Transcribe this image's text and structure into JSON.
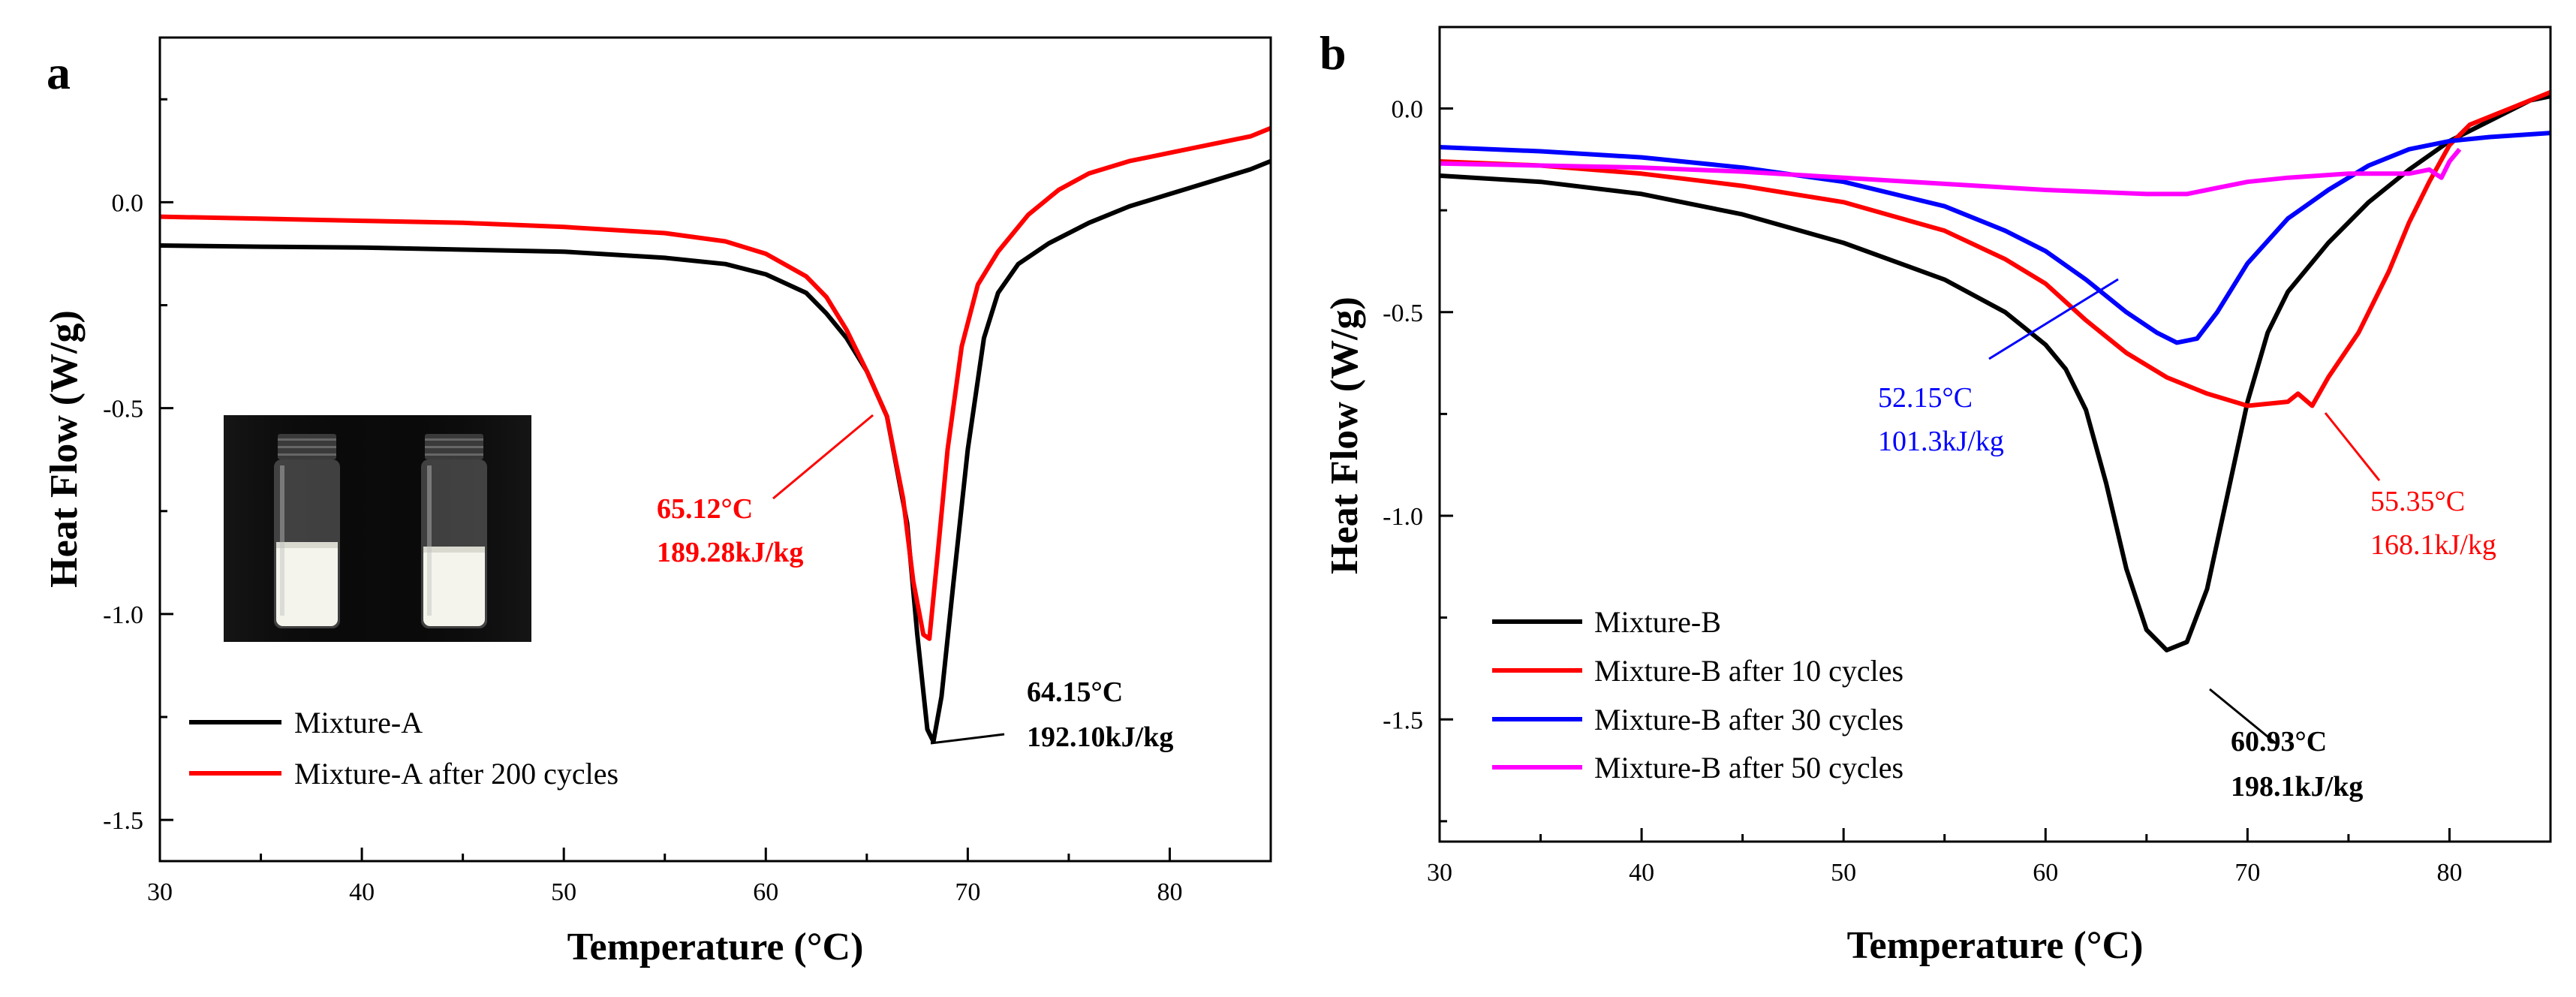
{
  "chart_data": [
    {
      "panel": "a",
      "type": "line",
      "xlabel": "Temperature (°C)",
      "ylabel": "Heat Flow (W/g)",
      "xlim": [
        30,
        85
      ],
      "ylim": [
        -1.6,
        0.4
      ],
      "xticks": [
        "30",
        "40",
        "50",
        "60",
        "70",
        "80"
      ],
      "yticks": [
        "0.0",
        "-0.5",
        "-1.0",
        "-1.5"
      ],
      "legend": "bottom-left",
      "series": [
        {
          "name": "Mixture-A",
          "color": "#000000",
          "points": [
            [
              30,
              -0.105
            ],
            [
              35,
              -0.108
            ],
            [
              40,
              -0.11
            ],
            [
              45,
              -0.115
            ],
            [
              50,
              -0.12
            ],
            [
              55,
              -0.135
            ],
            [
              58,
              -0.15
            ],
            [
              60,
              -0.175
            ],
            [
              62,
              -0.22
            ],
            [
              63,
              -0.27
            ],
            [
              64,
              -0.33
            ],
            [
              65,
              -0.41
            ],
            [
              66,
              -0.52
            ],
            [
              67,
              -0.78
            ],
            [
              67.5,
              -1.05
            ],
            [
              68,
              -1.28
            ],
            [
              68.3,
              -1.31
            ],
            [
              68.7,
              -1.2
            ],
            [
              69.3,
              -0.92
            ],
            [
              70,
              -0.6
            ],
            [
              70.8,
              -0.33
            ],
            [
              71.5,
              -0.22
            ],
            [
              72.5,
              -0.15
            ],
            [
              74,
              -0.1
            ],
            [
              76,
              -0.05
            ],
            [
              78,
              -0.01
            ],
            [
              80,
              0.02
            ],
            [
              82,
              0.05
            ],
            [
              84,
              0.08
            ],
            [
              85,
              0.1
            ]
          ]
        },
        {
          "name": "Mixture-A after 200 cycles",
          "color": "#ff0000",
          "points": [
            [
              30,
              -0.035
            ],
            [
              35,
              -0.04
            ],
            [
              40,
              -0.045
            ],
            [
              45,
              -0.05
            ],
            [
              50,
              -0.06
            ],
            [
              55,
              -0.075
            ],
            [
              58,
              -0.095
            ],
            [
              60,
              -0.125
            ],
            [
              62,
              -0.18
            ],
            [
              63,
              -0.23
            ],
            [
              64,
              -0.31
            ],
            [
              65,
              -0.41
            ],
            [
              66,
              -0.52
            ],
            [
              66.8,
              -0.72
            ],
            [
              67.3,
              -0.92
            ],
            [
              67.8,
              -1.05
            ],
            [
              68.1,
              -1.06
            ],
            [
              68.5,
              -0.86
            ],
            [
              69,
              -0.6
            ],
            [
              69.7,
              -0.35
            ],
            [
              70.5,
              -0.2
            ],
            [
              71.5,
              -0.12
            ],
            [
              73,
              -0.03
            ],
            [
              74.5,
              0.03
            ],
            [
              76,
              0.07
            ],
            [
              78,
              0.1
            ],
            [
              80,
              0.12
            ],
            [
              82,
              0.14
            ],
            [
              84,
              0.16
            ],
            [
              85,
              0.18
            ]
          ]
        }
      ],
      "annotations": [
        {
          "name": "red-peak",
          "color": "#ff0000",
          "lines": [
            "65.12°C",
            "189.28kJ/kg"
          ]
        },
        {
          "name": "black-peak",
          "color": "#000000",
          "lines": [
            "64.15°C",
            "192.10kJ/kg"
          ]
        }
      ]
    },
    {
      "panel": "b",
      "type": "line",
      "xlabel": "Temperature (°C)",
      "ylabel": "Heat Flow (W/g)",
      "xlim": [
        30,
        85
      ],
      "ylim": [
        -1.8,
        0.2
      ],
      "xticks": [
        "30",
        "40",
        "50",
        "60",
        "70",
        "80"
      ],
      "yticks": [
        "0.0",
        "-0.5",
        "-1.0",
        "-1.5"
      ],
      "legend": "bottom-left",
      "series": [
        {
          "name": "Mixture-B",
          "color": "#000000",
          "points": [
            [
              30,
              -0.165
            ],
            [
              35,
              -0.18
            ],
            [
              40,
              -0.21
            ],
            [
              45,
              -0.26
            ],
            [
              50,
              -0.33
            ],
            [
              55,
              -0.42
            ],
            [
              58,
              -0.5
            ],
            [
              60,
              -0.58
            ],
            [
              61,
              -0.64
            ],
            [
              62,
              -0.74
            ],
            [
              63,
              -0.92
            ],
            [
              64,
              -1.13
            ],
            [
              65,
              -1.28
            ],
            [
              66,
              -1.33
            ],
            [
              67,
              -1.31
            ],
            [
              68,
              -1.18
            ],
            [
              69,
              -0.95
            ],
            [
              70,
              -0.72
            ],
            [
              71,
              -0.55
            ],
            [
              72,
              -0.45
            ],
            [
              74,
              -0.33
            ],
            [
              76,
              -0.23
            ],
            [
              78,
              -0.15
            ],
            [
              80,
              -0.08
            ],
            [
              82,
              -0.03
            ],
            [
              84,
              0.02
            ],
            [
              85,
              0.03
            ]
          ]
        },
        {
          "name": "Mixture-B after 10 cycles",
          "color": "#ff0000",
          "points": [
            [
              30,
              -0.13
            ],
            [
              35,
              -0.14
            ],
            [
              40,
              -0.16
            ],
            [
              45,
              -0.19
            ],
            [
              50,
              -0.23
            ],
            [
              55,
              -0.3
            ],
            [
              58,
              -0.37
            ],
            [
              60,
              -0.43
            ],
            [
              62,
              -0.52
            ],
            [
              64,
              -0.6
            ],
            [
              66,
              -0.66
            ],
            [
              68,
              -0.7
            ],
            [
              70,
              -0.73
            ],
            [
              72,
              -0.72
            ],
            [
              72.5,
              -0.7
            ],
            [
              73.2,
              -0.73
            ],
            [
              74,
              -0.66
            ],
            [
              75.5,
              -0.55
            ],
            [
              77,
              -0.4
            ],
            [
              78,
              -0.28
            ],
            [
              79,
              -0.18
            ],
            [
              80,
              -0.09
            ],
            [
              81,
              -0.04
            ],
            [
              83,
              0.0
            ],
            [
              85,
              0.04
            ]
          ]
        },
        {
          "name": "Mixture-B after 30 cycles",
          "color": "#0000ff",
          "points": [
            [
              30,
              -0.095
            ],
            [
              35,
              -0.105
            ],
            [
              40,
              -0.12
            ],
            [
              45,
              -0.145
            ],
            [
              50,
              -0.18
            ],
            [
              55,
              -0.24
            ],
            [
              58,
              -0.3
            ],
            [
              60,
              -0.35
            ],
            [
              62,
              -0.42
            ],
            [
              64,
              -0.5
            ],
            [
              65.5,
              -0.55
            ],
            [
              66.5,
              -0.575
            ],
            [
              67.5,
              -0.565
            ],
            [
              68.5,
              -0.5
            ],
            [
              70,
              -0.38
            ],
            [
              72,
              -0.27
            ],
            [
              74,
              -0.2
            ],
            [
              76,
              -0.14
            ],
            [
              78,
              -0.1
            ],
            [
              80,
              -0.08
            ],
            [
              82,
              -0.07
            ],
            [
              85,
              -0.06
            ]
          ]
        },
        {
          "name": "Mixture-B after 50 cycles",
          "color": "#ff00ff",
          "points": [
            [
              30,
              -0.135
            ],
            [
              35,
              -0.14
            ],
            [
              40,
              -0.145
            ],
            [
              45,
              -0.155
            ],
            [
              50,
              -0.17
            ],
            [
              55,
              -0.185
            ],
            [
              60,
              -0.2
            ],
            [
              65,
              -0.21
            ],
            [
              67,
              -0.21
            ],
            [
              68,
              -0.2
            ],
            [
              70,
              -0.18
            ],
            [
              72,
              -0.17
            ],
            [
              75,
              -0.16
            ],
            [
              78,
              -0.16
            ],
            [
              79,
              -0.15
            ],
            [
              79.6,
              -0.17
            ],
            [
              80,
              -0.13
            ],
            [
              80.5,
              -0.1
            ]
          ]
        }
      ],
      "annotations": [
        {
          "name": "blue-peak",
          "color": "#0000ff",
          "lines": [
            "52.15°C",
            "101.3kJ/kg"
          ]
        },
        {
          "name": "red-peak",
          "color": "#ff0000",
          "lines": [
            "55.35°C",
            "168.1kJ/kg"
          ]
        },
        {
          "name": "black-peak",
          "color": "#000000",
          "lines": [
            "60.93°C",
            "198.1kJ/kg"
          ]
        }
      ]
    }
  ]
}
